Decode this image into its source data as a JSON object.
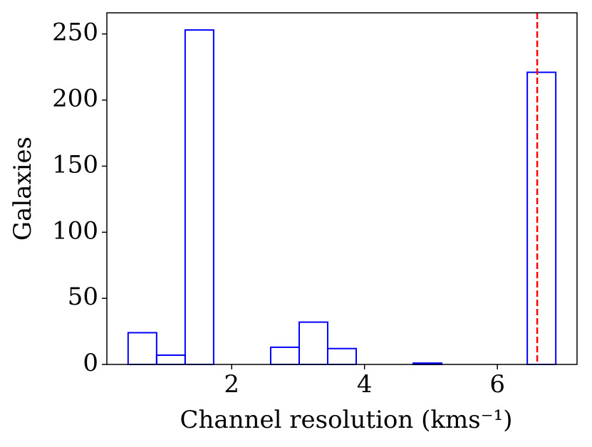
{
  "chart_data": {
    "type": "histogram",
    "xlabel": "Channel resolution (kms⁻¹)",
    "ylabel": "Galaxies",
    "bins": [
      0.44,
      0.8693,
      1.2987,
      1.728,
      2.1573,
      2.5867,
      3.016,
      3.4453,
      3.8747,
      4.304,
      4.7333,
      5.1627,
      5.592,
      6.0213,
      6.4507,
      6.88
    ],
    "values": [
      24,
      7,
      253,
      0,
      0,
      13,
      32,
      12,
      0,
      0,
      1,
      0,
      0,
      0,
      221
    ],
    "color": "#0000ff",
    "vline": {
      "x": 6.6,
      "color": "#ff0000"
    },
    "xlim": [
      0.12,
      7.2
    ],
    "ylim": [
      0,
      266
    ],
    "xticks": [
      2,
      4,
      6
    ],
    "yticks": [
      0,
      50,
      100,
      150,
      200,
      250
    ]
  }
}
